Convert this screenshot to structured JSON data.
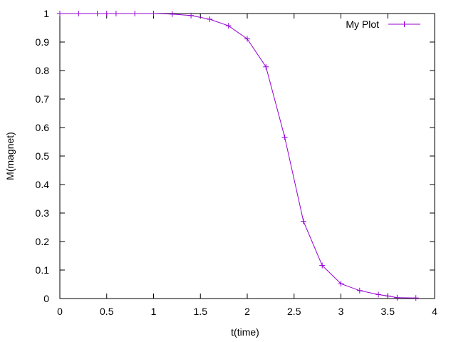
{
  "chart_data": {
    "type": "line",
    "title": "",
    "xlabel": "t(time)",
    "ylabel": "M(magnet)",
    "xlim": [
      0,
      4
    ],
    "ylim": [
      0,
      1
    ],
    "grid": false,
    "legend_position": "top-right",
    "x_ticks": [
      "0",
      "0.5",
      "1",
      "1.5",
      "2",
      "2.5",
      "3",
      "3.5",
      "4"
    ],
    "y_ticks": [
      "0",
      "0.1",
      "0.2",
      "0.3",
      "0.4",
      "0.5",
      "0.6",
      "0.7",
      "0.8",
      "0.9",
      "1"
    ],
    "series": [
      {
        "name": "My Plot",
        "color": "#9400d3",
        "marker": "plus",
        "x": [
          0,
          0.2,
          0.4,
          0.5,
          0.6,
          0.8,
          1.0,
          1.2,
          1.4,
          1.6,
          1.8,
          2.0,
          2.2,
          2.4,
          2.6,
          2.8,
          3.0,
          3.2,
          3.4,
          3.5,
          3.6,
          3.8
        ],
        "y": [
          1.0,
          1.0,
          1.0,
          1.0,
          1.0,
          1.0,
          1.0,
          0.998,
          0.993,
          0.98,
          0.957,
          0.911,
          0.813,
          0.566,
          0.271,
          0.116,
          0.052,
          0.028,
          0.014,
          0.009,
          0.003,
          0.002
        ]
      }
    ]
  }
}
